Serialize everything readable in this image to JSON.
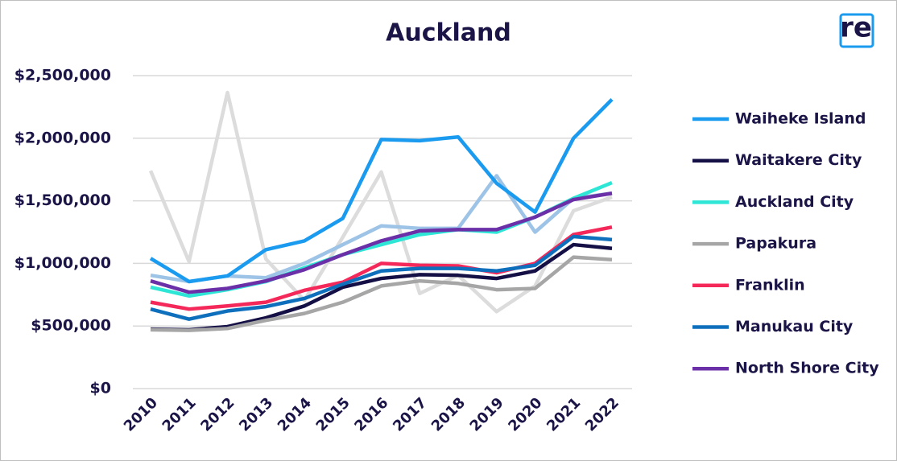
{
  "chart_data": {
    "type": "line",
    "title": "Auckland",
    "logo": "re",
    "categories": [
      "2010",
      "2011",
      "2012",
      "2013",
      "2014",
      "2015",
      "2016",
      "2017",
      "2018",
      "2019",
      "2020",
      "2021",
      "2022"
    ],
    "ylim": [
      0,
      2500000
    ],
    "yticks": [
      {
        "value": 0,
        "label": "$0"
      },
      {
        "value": 500000,
        "label": "$500,000"
      },
      {
        "value": 1000000,
        "label": "$1,000,000"
      },
      {
        "value": 1500000,
        "label": "$1,500,000"
      },
      {
        "value": 2000000,
        "label": "$2,000,000"
      },
      {
        "value": 2500000,
        "label": "$2,500,000"
      }
    ],
    "grid": true,
    "legend": "right",
    "series": [
      {
        "color": "#dcdcdc",
        "values": [
          1740000,
          1015000,
          2365000,
          1035000,
          705000,
          1210000,
          1730000,
          760000,
          905000,
          615000,
          820000,
          1420000,
          1530000
        ]
      },
      {
        "color": "#9dc3e6",
        "values": [
          905000,
          855000,
          900000,
          885000,
          1000000,
          1150000,
          1300000,
          1280000,
          1280000,
          1700000,
          1250000,
          1520000,
          1560000
        ]
      },
      {
        "name": "Waiheke Island",
        "color": "#1a9bf0",
        "values": [
          1040000,
          855000,
          900000,
          1110000,
          1180000,
          1360000,
          1990000,
          1980000,
          2010000,
          1640000,
          1410000,
          2000000,
          2310000
        ]
      },
      {
        "name": "Waitakere City",
        "color": "#140f45",
        "values": [
          475000,
          470000,
          495000,
          565000,
          660000,
          810000,
          880000,
          910000,
          905000,
          880000,
          940000,
          1150000,
          1120000
        ]
      },
      {
        "name": "Auckland City",
        "color": "#2ee6d6",
        "values": [
          810000,
          740000,
          790000,
          855000,
          965000,
          1070000,
          1150000,
          1230000,
          1270000,
          1250000,
          1370000,
          1520000,
          1645000
        ]
      },
      {
        "name": "Papakura",
        "color": "#a6a6a6",
        "values": [
          470000,
          465000,
          480000,
          545000,
          600000,
          690000,
          820000,
          860000,
          840000,
          790000,
          800000,
          1050000,
          1030000
        ]
      },
      {
        "name": "Franklin",
        "color": "#f5285a",
        "values": [
          690000,
          635000,
          660000,
          690000,
          785000,
          850000,
          1000000,
          985000,
          980000,
          925000,
          1000000,
          1230000,
          1290000
        ]
      },
      {
        "name": "Manukau City",
        "color": "#0e6fbd",
        "values": [
          635000,
          555000,
          620000,
          655000,
          720000,
          835000,
          940000,
          960000,
          960000,
          940000,
          985000,
          1215000,
          1190000
        ]
      },
      {
        "name": "North Shore City",
        "color": "#6b2fa8",
        "values": [
          860000,
          770000,
          800000,
          860000,
          950000,
          1070000,
          1180000,
          1260000,
          1270000,
          1270000,
          1370000,
          1510000,
          1560000
        ]
      }
    ]
  }
}
